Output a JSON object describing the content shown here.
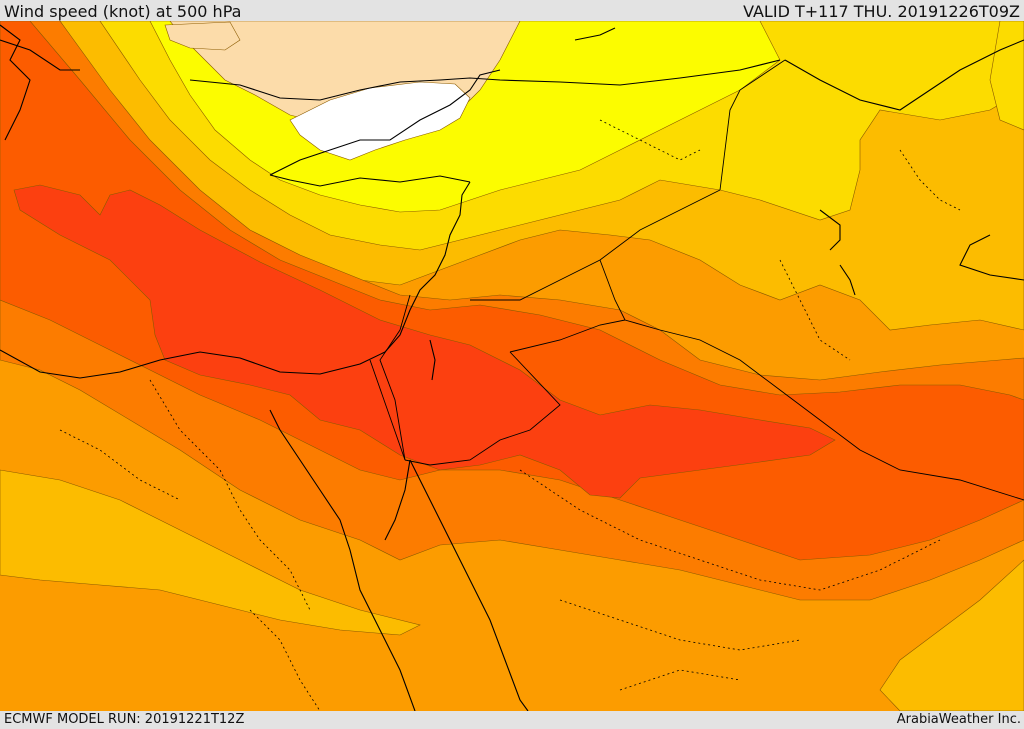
{
  "header": {
    "title": "Wind speed (knot) at 500 hPa",
    "valid": "VALID T+117 THU. 20191226T09Z"
  },
  "footer": {
    "model_run": "ECMWF MODEL RUN: 20191221T12Z",
    "credit": "ArabiaWeather Inc."
  },
  "map": {
    "field": "wind speed 500 hPa",
    "palette": {
      "calm": "#ffffff",
      "light": "#fcdcaa",
      "yellow": "#fcfc00",
      "gold": "#fcdc00",
      "amber": "#fcbc00",
      "orange": "#fc9c00",
      "dark_orange": "#fc7c00",
      "red_orange": "#fc5c00",
      "jet_core": "#fc4010"
    }
  }
}
